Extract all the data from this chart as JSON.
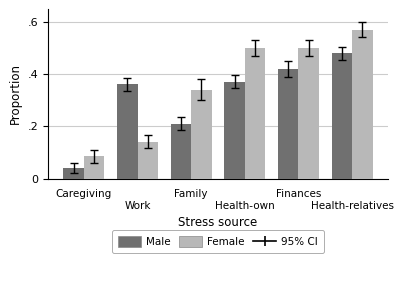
{
  "categories": [
    "Caregiving",
    "Work",
    "Family",
    "Health-own",
    "Finances",
    "Health-relatives"
  ],
  "male_values": [
    0.04,
    0.36,
    0.21,
    0.37,
    0.42,
    0.48
  ],
  "female_values": [
    0.085,
    0.14,
    0.34,
    0.5,
    0.5,
    0.57
  ],
  "male_ci": [
    0.02,
    0.025,
    0.025,
    0.025,
    0.03,
    0.025
  ],
  "female_ci": [
    0.025,
    0.025,
    0.04,
    0.03,
    0.03,
    0.03
  ],
  "male_color": "#707070",
  "female_color": "#b8b8b8",
  "bar_width": 0.38,
  "xlabel": "Stress source",
  "ylabel": "Proportion",
  "ylim": [
    0,
    0.65
  ],
  "yticks": [
    0,
    0.2,
    0.4,
    0.6
  ],
  "ytick_labels": [
    "0",
    ".2",
    ".4",
    ".6"
  ],
  "bg_color": "#ffffff",
  "grid_color": "#cccccc",
  "legend_male_label": "Male",
  "legend_female_label": "Female",
  "legend_ci_label": "95% CI",
  "elinewidth": 1.0,
  "capsize": 3,
  "capthick": 1.0
}
